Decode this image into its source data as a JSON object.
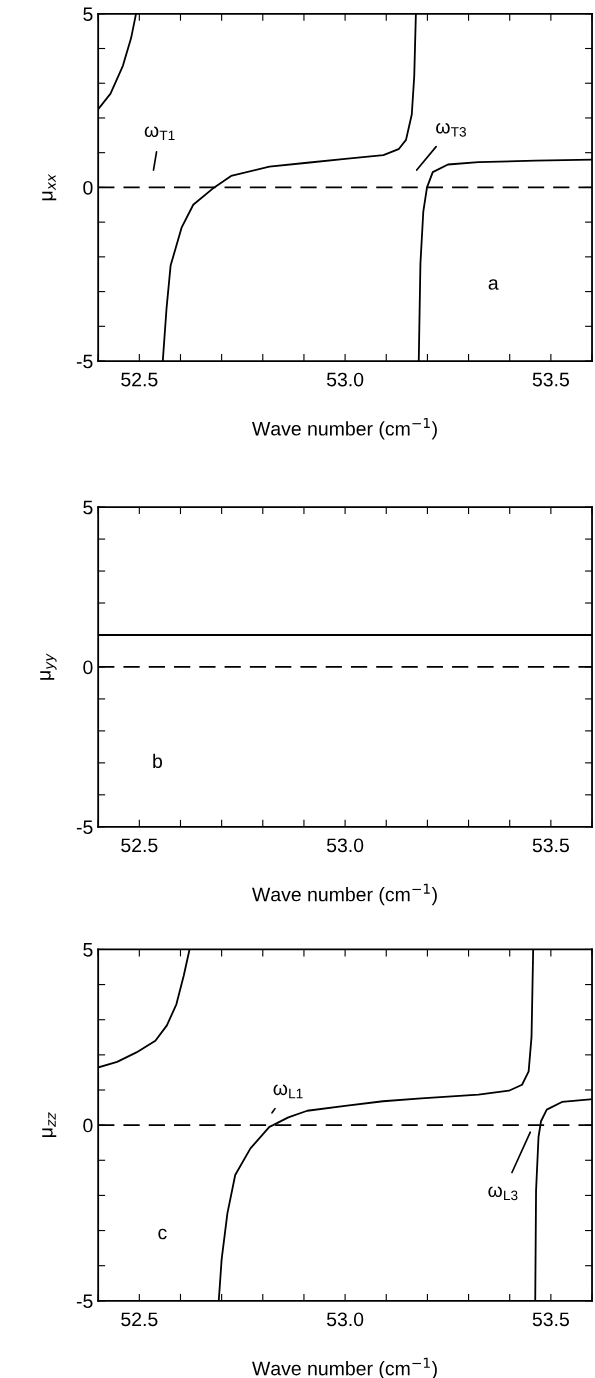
{
  "chart_data": [
    {
      "type": "line",
      "xlabel": "Wave number (cm$^{−1}$)",
      "ylabel": "μ$_{xx}$",
      "xlim": [
        52.4,
        53.6
      ],
      "ylim": [
        -5,
        5
      ],
      "xticks": [
        {
          "value": 52.4,
          "label": null
        },
        {
          "value": 52.5,
          "label": "52.5"
        },
        {
          "value": 52.6,
          "label": null
        },
        {
          "value": 52.7,
          "label": null
        },
        {
          "value": 52.8,
          "label": null
        },
        {
          "value": 52.9,
          "label": null
        },
        {
          "value": 53.0,
          "label": "53.0"
        },
        {
          "value": 53.1,
          "label": null
        },
        {
          "value": 53.2,
          "label": null
        },
        {
          "value": 53.3,
          "label": null
        },
        {
          "value": 53.4,
          "label": null
        },
        {
          "value": 53.5,
          "label": "53.5"
        },
        {
          "value": 53.6,
          "label": null
        }
      ],
      "yticks": [
        -5,
        {
          "value": -4,
          "label": null
        },
        {
          "value": -3,
          "label": null
        },
        {
          "value": -2,
          "label": null
        },
        {
          "value": -1,
          "label": null
        },
        0,
        {
          "value": 1,
          "label": null
        },
        {
          "value": 2,
          "label": null
        },
        {
          "value": 3,
          "label": null
        },
        {
          "value": 4,
          "label": null
        },
        5
      ],
      "grid": false,
      "legend": false,
      "line_style": "solid",
      "series": [
        {
          "color": "#000000",
          "x": [
            52.4,
            52.43,
            52.46,
            52.48,
            52.492
          ],
          "values": [
            2.25,
            2.7,
            3.5,
            4.3,
            5
          ]
        },
        {
          "color": "#000000",
          "x": [
            52.557,
            52.566,
            52.576,
            52.603,
            52.631,
            52.682,
            52.723,
            52.816,
            52.908,
            53.0,
            53.093,
            53.13,
            53.148,
            53.162,
            53.168,
            53.172
          ],
          "values": [
            -5,
            -3.5,
            -2.25,
            -1.15,
            -0.5,
            0,
            0.33,
            0.6,
            0.71,
            0.82,
            0.93,
            1.1,
            1.37,
            2.1,
            3.2,
            5
          ]
        },
        {
          "color": "#000000",
          "x": [
            53.179,
            53.183,
            53.19,
            53.199,
            53.213,
            53.25,
            53.324,
            53.462,
            53.6
          ],
          "values": [
            -5,
            -2.2,
            -0.7,
            0,
            0.44,
            0.66,
            0.73,
            0.77,
            0.8
          ]
        }
      ],
      "ref_lines": [
        {
          "axis": "y",
          "value": 0,
          "color": "#000000",
          "line_style": "dashed"
        }
      ],
      "annotations": [
        "ω$_{T1}$",
        "ω$_{T3}$",
        "a"
      ]
    },
    {
      "type": "line",
      "xlabel": "Wave number (cm$^{−1}$)",
      "ylabel": "μ$_{yy}$",
      "xlim": [
        52.4,
        53.6
      ],
      "ylim": [
        -5,
        5
      ],
      "xticks": [
        {
          "value": 52.4,
          "label": null
        },
        {
          "value": 52.5,
          "label": "52.5"
        },
        {
          "value": 52.6,
          "label": null
        },
        {
          "value": 52.7,
          "label": null
        },
        {
          "value": 52.8,
          "label": null
        },
        {
          "value": 52.9,
          "label": null
        },
        {
          "value": 53.0,
          "label": "53.0"
        },
        {
          "value": 53.1,
          "label": null
        },
        {
          "value": 53.2,
          "label": null
        },
        {
          "value": 53.3,
          "label": null
        },
        {
          "value": 53.4,
          "label": null
        },
        {
          "value": 53.5,
          "label": "53.5"
        },
        {
          "value": 53.6,
          "label": null
        }
      ],
      "yticks": [
        -5,
        {
          "value": -4,
          "label": null
        },
        {
          "value": -3,
          "label": null
        },
        {
          "value": -2,
          "label": null
        },
        {
          "value": -1,
          "label": null
        },
        0,
        {
          "value": 1,
          "label": null
        },
        {
          "value": 2,
          "label": null
        },
        {
          "value": 3,
          "label": null
        },
        {
          "value": 4,
          "label": null
        },
        5
      ],
      "grid": false,
      "legend": false,
      "line_style": "solid",
      "series": [
        {
          "color": "#000000",
          "x": [
            52.4,
            53.6
          ],
          "values": [
            1,
            1
          ]
        }
      ],
      "ref_lines": [
        {
          "axis": "y",
          "value": 0,
          "color": "#000000",
          "line_style": "dashed"
        }
      ],
      "annotations": [
        "b"
      ]
    },
    {
      "type": "line",
      "xlabel": "Wave number (cm$^{−1}$)",
      "ylabel": "μ$_{zz}$",
      "xlim": [
        52.4,
        53.6
      ],
      "ylim": [
        -5,
        5
      ],
      "xticks": [
        {
          "value": 52.4,
          "label": null
        },
        {
          "value": 52.5,
          "label": "52.5"
        },
        {
          "value": 52.6,
          "label": null
        },
        {
          "value": 52.7,
          "label": null
        },
        {
          "value": 52.8,
          "label": null
        },
        {
          "value": 52.9,
          "label": null
        },
        {
          "value": 53.0,
          "label": "53.0"
        },
        {
          "value": 53.1,
          "label": null
        },
        {
          "value": 53.2,
          "label": null
        },
        {
          "value": 53.3,
          "label": null
        },
        {
          "value": 53.4,
          "label": null
        },
        {
          "value": 53.5,
          "label": "53.5"
        },
        {
          "value": 53.6,
          "label": null
        }
      ],
      "yticks": [
        -5,
        {
          "value": -4,
          "label": null
        },
        {
          "value": -3,
          "label": null
        },
        {
          "value": -2,
          "label": null
        },
        {
          "value": -1,
          "label": null
        },
        0,
        {
          "value": 1,
          "label": null
        },
        {
          "value": 2,
          "label": null
        },
        {
          "value": 3,
          "label": null
        },
        {
          "value": 4,
          "label": null
        },
        5
      ],
      "grid": false,
      "legend": false,
      "line_style": "solid",
      "series": [
        {
          "color": "#000000",
          "x": [
            52.4,
            52.446,
            52.493,
            52.539,
            52.567,
            52.59,
            52.608,
            52.622
          ],
          "values": [
            1.64,
            1.8,
            2.07,
            2.4,
            2.84,
            3.44,
            4.26,
            5
          ]
        },
        {
          "color": "#000000",
          "x": [
            52.693,
            52.7,
            52.714,
            52.733,
            52.77,
            52.816,
            52.825,
            52.862,
            52.908,
            53.0,
            53.092,
            53.185,
            53.324,
            53.398,
            53.43,
            53.446,
            53.453,
            53.457
          ],
          "values": [
            -5,
            -3.82,
            -2.51,
            -1.42,
            -0.66,
            -0.05,
            0,
            0.22,
            0.41,
            0.55,
            0.68,
            0.76,
            0.87,
            0.98,
            1.15,
            1.53,
            2.51,
            5
          ]
        },
        {
          "color": "#000000",
          "x": [
            53.462,
            53.464,
            53.47,
            53.476,
            53.49,
            53.527,
            53.6
          ],
          "values": [
            -5,
            -1.86,
            -0.33,
            0.11,
            0.44,
            0.66,
            0.74
          ]
        }
      ],
      "ref_lines": [
        {
          "axis": "y",
          "value": 0,
          "color": "#000000",
          "line_style": "dashed"
        }
      ],
      "annotations": [
        "ω$_{L1}$",
        "ω$_{L3}$",
        "c"
      ]
    }
  ]
}
